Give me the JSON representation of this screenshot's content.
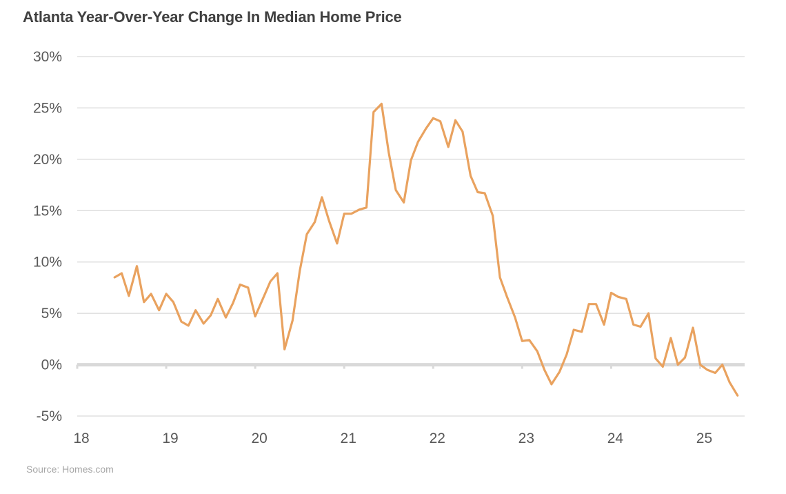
{
  "title": "Atlanta Year-Over-Year Change In Median Home Price",
  "source": "Source: Homes.com",
  "colors": {
    "line": "#e9a25f",
    "grid": "#d9d9d9",
    "zero_axis": "#d9d9d9",
    "text": "#595959"
  },
  "chart_data": {
    "type": "line",
    "title": "Atlanta Year-Over-Year Change In Median Home Price",
    "xlabel": "",
    "ylabel": "",
    "x_ticks": [
      "18",
      "19",
      "20",
      "21",
      "22",
      "23",
      "24",
      "25"
    ],
    "y_ticks": [
      "30%",
      "25%",
      "20%",
      "15%",
      "10%",
      "5%",
      "0%",
      "-5%"
    ],
    "xlim": [
      2018,
      2025.5
    ],
    "ylim": [
      -5,
      30
    ],
    "grid": "horizontal",
    "legend": "none",
    "series": [
      {
        "x": [
          2018.42,
          2018.5,
          2018.58,
          2018.67,
          2018.75,
          2018.83,
          2018.92,
          2019.0,
          2019.08,
          2019.17,
          2019.25,
          2019.33,
          2019.42,
          2019.5,
          2019.58,
          2019.67,
          2019.75,
          2019.83,
          2019.92,
          2020.0,
          2020.08,
          2020.17,
          2020.25,
          2020.33,
          2020.42,
          2020.5,
          2020.58,
          2020.67,
          2020.75,
          2020.83,
          2020.92,
          2021.0,
          2021.08,
          2021.17,
          2021.25,
          2021.33,
          2021.42,
          2021.5,
          2021.58,
          2021.67,
          2021.75,
          2021.83,
          2021.92,
          2022.0,
          2022.08,
          2022.17,
          2022.25,
          2022.33,
          2022.42,
          2022.5,
          2022.58,
          2022.67,
          2022.75,
          2022.83,
          2022.92,
          2023.0,
          2023.08,
          2023.17,
          2023.25,
          2023.33,
          2023.42,
          2023.5,
          2023.58,
          2023.67,
          2023.75,
          2023.83,
          2023.92,
          2024.0,
          2024.08,
          2024.17,
          2024.25,
          2024.33,
          2024.42,
          2024.5,
          2024.58,
          2024.67,
          2024.75,
          2024.83,
          2024.92,
          2025.0,
          2025.08,
          2025.17,
          2025.25,
          2025.33,
          2025.42
        ],
        "y": [
          8.5,
          8.9,
          6.7,
          9.6,
          6.1,
          6.9,
          5.3,
          6.9,
          6.1,
          4.2,
          3.8,
          5.3,
          4.0,
          4.8,
          6.4,
          4.6,
          6.0,
          7.8,
          7.5,
          4.7,
          6.3,
          8.1,
          8.9,
          1.5,
          4.3,
          9.1,
          12.7,
          13.9,
          16.3,
          14.0,
          11.8,
          14.7,
          14.7,
          15.1,
          15.3,
          24.6,
          25.4,
          20.7,
          17.0,
          15.8,
          19.9,
          21.7,
          23.0,
          24.0,
          23.7,
          21.2,
          23.8,
          22.7,
          18.4,
          16.8,
          16.7,
          14.5,
          8.5,
          6.6,
          4.6,
          2.3,
          2.4,
          1.3,
          -0.5,
          -1.9,
          -0.7,
          1.0,
          3.4,
          3.2,
          5.9,
          5.9,
          3.9,
          7.0,
          6.6,
          6.4,
          3.9,
          3.7,
          5.0,
          0.6,
          -0.2,
          2.6,
          0.0,
          0.7,
          3.6,
          0.0,
          -0.5,
          -0.8,
          0.0,
          -1.7,
          -3.0
        ]
      }
    ]
  }
}
